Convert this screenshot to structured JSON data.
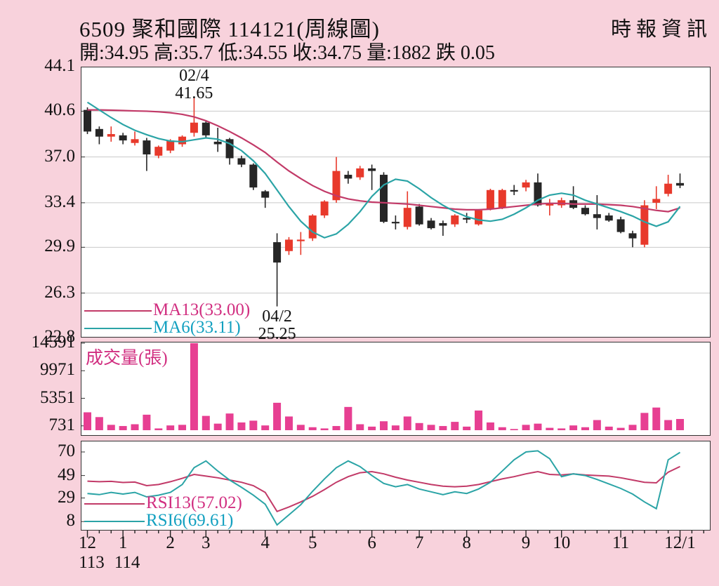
{
  "header": {
    "title": "6509 聚和國際 114121(周線圖)",
    "source": "時報資訊",
    "quote": "開:34.95 高:35.7 低:34.55 收:34.75 量:1882 跌 0.05"
  },
  "legend": {
    "ma13": "MA13(33.00)",
    "ma6": "MA6(33.11)",
    "volume_title": "成交量(張)",
    "rsi13": "RSI13(57.02)",
    "rsi6": "RSI6(69.61)"
  },
  "colors": {
    "background": "#f8d2dc",
    "panel_bg": "#ffffff",
    "panel_border": "#333333",
    "grid": "#c9c9c9",
    "up_candle": "#e8392b",
    "down_candle": "#262626",
    "ma13_line": "#c23a68",
    "ma6_line": "#2ba4a6",
    "volume_bar": "#e73f92",
    "magenta_text": "#d12e80",
    "teal_text": "#12a0c0",
    "axis_text": "#111111"
  },
  "chart_data": [
    {
      "type": "candlestick",
      "title": "周線圖",
      "ylabel": "price",
      "ylim": [
        22.8,
        44.1
      ],
      "yticks": [
        44.1,
        40.6,
        37.0,
        33.4,
        29.9,
        26.3,
        22.8
      ],
      "grid": true,
      "candles_ohlc": [
        [
          40.7,
          40.9,
          38.8,
          39.0
        ],
        [
          39.2,
          39.4,
          38.0,
          38.6
        ],
        [
          38.6,
          39.4,
          38.2,
          38.8
        ],
        [
          38.7,
          38.9,
          38.0,
          38.3
        ],
        [
          38.1,
          39.0,
          37.9,
          38.4
        ],
        [
          38.3,
          38.5,
          35.9,
          37.2
        ],
        [
          37.1,
          37.9,
          36.9,
          37.8
        ],
        [
          37.5,
          38.4,
          37.3,
          38.3
        ],
        [
          38.0,
          38.7,
          37.8,
          38.6
        ],
        [
          38.9,
          41.65,
          38.6,
          39.7
        ],
        [
          39.7,
          39.9,
          38.5,
          38.7
        ],
        [
          38.2,
          39.3,
          37.4,
          38.0
        ],
        [
          38.4,
          38.5,
          36.4,
          36.9
        ],
        [
          36.9,
          37.1,
          36.2,
          36.4
        ],
        [
          36.4,
          36.5,
          34.4,
          34.6
        ],
        [
          34.3,
          34.4,
          33.0,
          33.8
        ],
        [
          30.3,
          31.0,
          25.25,
          28.7
        ],
        [
          29.6,
          30.7,
          29.3,
          30.5
        ],
        [
          30.4,
          31.1,
          29.3,
          30.5
        ],
        [
          30.6,
          32.5,
          30.4,
          32.4
        ],
        [
          32.4,
          33.6,
          32.2,
          33.5
        ],
        [
          33.6,
          37.0,
          33.4,
          35.9
        ],
        [
          35.6,
          35.9,
          34.9,
          35.3
        ],
        [
          35.4,
          36.3,
          35.2,
          36.1
        ],
        [
          36.1,
          36.4,
          34.4,
          35.9
        ],
        [
          35.6,
          35.8,
          31.8,
          31.9
        ],
        [
          31.9,
          32.4,
          31.3,
          31.8
        ],
        [
          31.5,
          34.3,
          31.3,
          33.0
        ],
        [
          33.1,
          33.3,
          31.6,
          31.7
        ],
        [
          32.0,
          32.2,
          31.3,
          31.4
        ],
        [
          31.8,
          32.0,
          30.8,
          31.6
        ],
        [
          31.7,
          32.5,
          31.5,
          32.4
        ],
        [
          32.2,
          32.6,
          31.8,
          32.1
        ],
        [
          31.7,
          32.9,
          31.6,
          32.8
        ],
        [
          32.9,
          34.5,
          32.8,
          34.4
        ],
        [
          33.0,
          34.5,
          32.9,
          34.4
        ],
        [
          34.4,
          34.8,
          34.0,
          34.3
        ],
        [
          34.6,
          35.2,
          34.3,
          35.0
        ],
        [
          35.0,
          35.7,
          33.1,
          33.2
        ],
        [
          33.2,
          33.7,
          32.4,
          33.3
        ],
        [
          33.2,
          33.8,
          33.0,
          33.6
        ],
        [
          33.6,
          34.7,
          32.9,
          33.0
        ],
        [
          33.0,
          33.2,
          32.4,
          32.5
        ],
        [
          32.5,
          34.0,
          31.3,
          32.2
        ],
        [
          32.4,
          32.6,
          31.9,
          32.0
        ],
        [
          32.1,
          32.3,
          31.0,
          31.1
        ],
        [
          31.0,
          31.2,
          29.9,
          30.6
        ],
        [
          30.1,
          33.6,
          29.9,
          33.2
        ],
        [
          33.4,
          34.7,
          32.9,
          33.7
        ],
        [
          34.1,
          35.6,
          33.9,
          34.9
        ],
        [
          34.95,
          35.7,
          34.55,
          34.75
        ]
      ],
      "series": [
        {
          "name": "MA13(33.00)",
          "current": 33.0,
          "values": [
            40.7,
            40.7,
            40.68,
            40.65,
            40.62,
            40.6,
            40.55,
            40.48,
            40.35,
            40.15,
            39.85,
            39.45,
            39.0,
            38.5,
            37.95,
            37.35,
            36.6,
            35.9,
            35.3,
            34.75,
            34.3,
            33.95,
            33.7,
            33.55,
            33.45,
            33.4,
            33.35,
            33.3,
            33.2,
            33.1,
            33.0,
            32.9,
            32.85,
            32.85,
            32.9,
            33.0,
            33.1,
            33.2,
            33.3,
            33.35,
            33.35,
            33.3,
            33.3,
            33.3,
            33.25,
            33.2,
            33.1,
            32.95,
            32.8,
            32.7,
            33.0
          ]
        },
        {
          "name": "MA6(33.11)",
          "current": 33.11,
          "values": [
            41.3,
            40.7,
            40.1,
            39.55,
            39.1,
            38.75,
            38.45,
            38.25,
            38.2,
            38.35,
            38.5,
            38.4,
            38.05,
            37.5,
            36.7,
            35.7,
            34.4,
            33.1,
            31.95,
            31.1,
            30.65,
            30.95,
            31.7,
            32.7,
            33.9,
            34.8,
            35.25,
            35.1,
            34.5,
            33.8,
            33.2,
            32.7,
            32.3,
            32.05,
            31.95,
            32.1,
            32.5,
            33.0,
            33.6,
            34.0,
            34.15,
            34.0,
            33.6,
            33.3,
            33.0,
            32.7,
            32.35,
            31.9,
            31.55,
            31.9,
            33.11
          ]
        }
      ],
      "annotations": [
        {
          "week": 9,
          "lines": [
            "02/4",
            "41.65"
          ],
          "placement": "above"
        },
        {
          "week": 16,
          "lines": [
            "04/2",
            "25.25"
          ],
          "placement": "below"
        }
      ],
      "xticks": [
        {
          "week": 0,
          "label": "12"
        },
        {
          "week": 3,
          "label": "1"
        },
        {
          "week": 7,
          "label": "2"
        },
        {
          "week": 10,
          "label": "3"
        },
        {
          "week": 15,
          "label": "4"
        },
        {
          "week": 19,
          "label": "5"
        },
        {
          "week": 24,
          "label": "6"
        },
        {
          "week": 28,
          "label": "7"
        },
        {
          "week": 32,
          "label": "8"
        },
        {
          "week": 37,
          "label": "9"
        },
        {
          "week": 40,
          "label": "10"
        },
        {
          "week": 45,
          "label": "11"
        },
        {
          "week": 50,
          "label": "12/1"
        }
      ],
      "year_labels": [
        {
          "week": 0,
          "label": "113"
        },
        {
          "week": 3,
          "label": "114"
        }
      ]
    },
    {
      "type": "bar",
      "title": "成交量(張)",
      "ylim": [
        0,
        14591
      ],
      "yticks": [
        14591,
        9971,
        5351,
        731
      ],
      "values": [
        3000,
        2200,
        900,
        700,
        1000,
        2600,
        300,
        800,
        900,
        14591,
        2400,
        1100,
        2800,
        1300,
        1600,
        800,
        4600,
        2300,
        900,
        500,
        300,
        700,
        3900,
        1000,
        600,
        1500,
        800,
        2300,
        1200,
        900,
        700,
        1400,
        600,
        3300,
        1300,
        500,
        200,
        900,
        1100,
        400,
        300,
        800,
        500,
        1700,
        600,
        400,
        900,
        2900,
        3800,
        1700,
        1882
      ]
    },
    {
      "type": "line",
      "title": "RSI",
      "ylim": [
        0,
        80
      ],
      "yticks": [
        70,
        49,
        29,
        8
      ],
      "series": [
        {
          "name": "RSI13(57.02)",
          "current": 57.02,
          "values": [
            44.0,
            43.5,
            43.8,
            42.8,
            43.2,
            40.0,
            41.0,
            43.5,
            46.5,
            50.0,
            48.5,
            47.0,
            45.0,
            43.0,
            40.0,
            34.0,
            17.0,
            21.0,
            25.5,
            30.5,
            36.5,
            43.0,
            48.0,
            51.5,
            52.5,
            50.5,
            47.5,
            45.0,
            43.0,
            41.0,
            39.5,
            39.0,
            39.5,
            41.0,
            43.5,
            46.0,
            48.0,
            50.5,
            52.5,
            50.0,
            49.5,
            50.5,
            49.5,
            49.0,
            48.5,
            47.0,
            45.0,
            43.0,
            42.5,
            52.0,
            57.02
          ]
        },
        {
          "name": "RSI6(69.61)",
          "current": 69.61,
          "values": [
            33.0,
            32.0,
            34.0,
            32.5,
            34.0,
            30.0,
            31.5,
            34.0,
            41.0,
            56.0,
            62.0,
            53.0,
            45.0,
            38.5,
            31.5,
            23.5,
            5.0,
            14.0,
            23.0,
            35.0,
            46.0,
            56.0,
            62.0,
            57.0,
            49.0,
            42.0,
            39.0,
            41.0,
            37.0,
            34.5,
            32.0,
            34.5,
            33.0,
            37.0,
            43.0,
            53.0,
            63.0,
            70.0,
            71.0,
            64.0,
            48.0,
            50.5,
            49.0,
            45.5,
            41.5,
            37.5,
            32.5,
            25.5,
            19.5,
            63.0,
            69.61
          ]
        }
      ]
    }
  ]
}
